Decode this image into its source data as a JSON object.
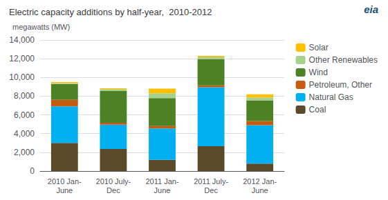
{
  "chart_data": {
    "type": "bar",
    "title": "Electric capacity additions by half-year,  2010-2012",
    "ylabel": "megawatts (MW)",
    "annotations": [
      {
        "text": "eia",
        "color": "#1a5276"
      }
    ],
    "categories": [
      "2010 Jan-\nJune",
      "2010 July-\nDec",
      "2011 Jan-\nJune",
      "2011 July-\nDec",
      "2012 Jan-\nJune"
    ],
    "series": [
      {
        "name": "Coal",
        "color": "#5a4a2a",
        "values": [
          3000,
          2350,
          1200,
          2650,
          800
        ]
      },
      {
        "name": "Natural Gas",
        "color": "#00b0f0",
        "values": [
          3900,
          2600,
          3350,
          6300,
          4100
        ]
      },
      {
        "name": "Petroleum, Other",
        "color": "#c55a11",
        "values": [
          700,
          200,
          250,
          200,
          450
        ]
      },
      {
        "name": "Wind",
        "color": "#4e8024",
        "values": [
          1700,
          3400,
          3000,
          2800,
          2200
        ]
      },
      {
        "name": "Other Renewables",
        "color": "#a9d18e",
        "values": [
          100,
          200,
          500,
          200,
          300
        ]
      },
      {
        "name": "Solar",
        "color": "#ffc000",
        "values": [
          100,
          100,
          500,
          150,
          350
        ]
      }
    ],
    "stacked": true,
    "ylim": [
      0,
      14000
    ],
    "yticks": [
      0,
      {
        "value": 2000,
        "label": "2,000"
      },
      {
        "value": 4000,
        "label": "4,000"
      },
      {
        "value": 6000,
        "label": "6,000"
      },
      {
        "value": 8000,
        "label": "8,000"
      },
      {
        "value": 10000,
        "label": "10,000"
      },
      {
        "value": 12000,
        "label": "12,000"
      },
      {
        "value": 14000,
        "label": "14,000"
      }
    ],
    "grid": true,
    "legend": "right"
  }
}
